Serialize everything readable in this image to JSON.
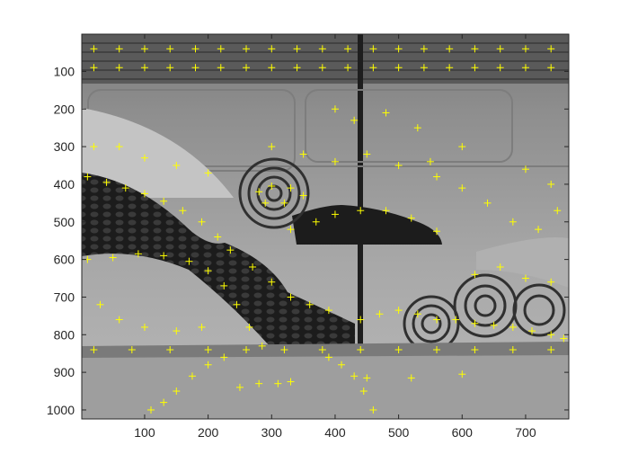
{
  "chart_data": {
    "type": "scatter",
    "title": "",
    "xlabel": "",
    "ylabel": "",
    "xlim": [
      1,
      768
    ],
    "ylim": [
      1,
      1024
    ],
    "y_reversed": true,
    "grid": false,
    "background": "grayscale photograph (tiled wall with perforated black panels and concentric-circle pattern)",
    "x_ticks": [
      "100",
      "200",
      "300",
      "400",
      "500",
      "600",
      "700"
    ],
    "y_ticks": [
      "100",
      "200",
      "300",
      "400",
      "500",
      "600",
      "700",
      "800",
      "900",
      "1000"
    ],
    "x_tick_values": [
      100,
      200,
      300,
      400,
      500,
      600,
      700
    ],
    "y_tick_values": [
      100,
      200,
      300,
      400,
      500,
      600,
      700,
      800,
      900,
      1000
    ],
    "marker": "+",
    "marker_color": "#ffff00",
    "series": [
      {
        "points_approx": [
          [
            20,
            40
          ],
          [
            60,
            40
          ],
          [
            100,
            40
          ],
          [
            140,
            40
          ],
          [
            180,
            40
          ],
          [
            220,
            40
          ],
          [
            260,
            40
          ],
          [
            300,
            40
          ],
          [
            340,
            40
          ],
          [
            380,
            40
          ],
          [
            420,
            40
          ],
          [
            460,
            40
          ],
          [
            500,
            40
          ],
          [
            540,
            40
          ],
          [
            580,
            40
          ],
          [
            620,
            40
          ],
          [
            660,
            40
          ],
          [
            700,
            40
          ],
          [
            740,
            40
          ],
          [
            20,
            90
          ],
          [
            60,
            90
          ],
          [
            100,
            90
          ],
          [
            140,
            90
          ],
          [
            180,
            90
          ],
          [
            220,
            90
          ],
          [
            260,
            90
          ],
          [
            300,
            90
          ],
          [
            340,
            90
          ],
          [
            380,
            90
          ],
          [
            420,
            90
          ],
          [
            460,
            90
          ],
          [
            500,
            90
          ],
          [
            540,
            90
          ],
          [
            580,
            90
          ],
          [
            620,
            90
          ],
          [
            660,
            90
          ],
          [
            700,
            90
          ],
          [
            740,
            90
          ],
          [
            10,
            380
          ],
          [
            40,
            395
          ],
          [
            70,
            410
          ],
          [
            100,
            425
          ],
          [
            130,
            445
          ],
          [
            160,
            470
          ],
          [
            190,
            500
          ],
          [
            215,
            540
          ],
          [
            235,
            575
          ],
          [
            270,
            620
          ],
          [
            300,
            660
          ],
          [
            330,
            700
          ],
          [
            360,
            720
          ],
          [
            390,
            735
          ],
          [
            10,
            600
          ],
          [
            50,
            595
          ],
          [
            90,
            585
          ],
          [
            130,
            590
          ],
          [
            170,
            605
          ],
          [
            200,
            630
          ],
          [
            225,
            670
          ],
          [
            245,
            720
          ],
          [
            265,
            780
          ],
          [
            285,
            830
          ],
          [
            280,
            420
          ],
          [
            300,
            405
          ],
          [
            330,
            410
          ],
          [
            350,
            430
          ],
          [
            320,
            450
          ],
          [
            290,
            450
          ],
          [
            330,
            520
          ],
          [
            370,
            500
          ],
          [
            400,
            480
          ],
          [
            440,
            470
          ],
          [
            480,
            470
          ],
          [
            520,
            490
          ],
          [
            560,
            525
          ],
          [
            440,
            760
          ],
          [
            470,
            745
          ],
          [
            500,
            735
          ],
          [
            530,
            745
          ],
          [
            560,
            760
          ],
          [
            590,
            760
          ],
          [
            620,
            770
          ],
          [
            650,
            775
          ],
          [
            680,
            780
          ],
          [
            710,
            790
          ],
          [
            740,
            800
          ],
          [
            760,
            810
          ],
          [
            20,
            840
          ],
          [
            80,
            840
          ],
          [
            140,
            840
          ],
          [
            200,
            840
          ],
          [
            260,
            840
          ],
          [
            320,
            840
          ],
          [
            380,
            840
          ],
          [
            440,
            840
          ],
          [
            500,
            840
          ],
          [
            560,
            840
          ],
          [
            620,
            840
          ],
          [
            680,
            840
          ],
          [
            740,
            840
          ],
          [
            110,
            1000
          ],
          [
            130,
            980
          ],
          [
            150,
            950
          ],
          [
            175,
            910
          ],
          [
            200,
            880
          ],
          [
            225,
            860
          ],
          [
            390,
            860
          ],
          [
            410,
            880
          ],
          [
            430,
            910
          ],
          [
            445,
            950
          ],
          [
            460,
            1000
          ],
          [
            250,
            940
          ],
          [
            280,
            930
          ],
          [
            310,
            930
          ],
          [
            330,
            925
          ],
          [
            450,
            915
          ],
          [
            520,
            915
          ],
          [
            600,
            905
          ],
          [
            560,
            380
          ],
          [
            600,
            410
          ],
          [
            640,
            450
          ],
          [
            680,
            500
          ],
          [
            720,
            520
          ],
          [
            750,
            470
          ],
          [
            740,
            400
          ],
          [
            700,
            360
          ],
          [
            300,
            300
          ],
          [
            350,
            320
          ],
          [
            400,
            340
          ],
          [
            450,
            320
          ],
          [
            500,
            350
          ],
          [
            550,
            340
          ],
          [
            600,
            300
          ],
          [
            20,
            300
          ],
          [
            60,
            300
          ],
          [
            100,
            330
          ],
          [
            150,
            350
          ],
          [
            200,
            370
          ],
          [
            30,
            720
          ],
          [
            60,
            760
          ],
          [
            100,
            780
          ],
          [
            150,
            790
          ],
          [
            190,
            780
          ],
          [
            620,
            640
          ],
          [
            660,
            620
          ],
          [
            700,
            650
          ],
          [
            740,
            660
          ],
          [
            400,
            200
          ],
          [
            430,
            230
          ],
          [
            480,
            210
          ],
          [
            530,
            250
          ]
        ]
      }
    ]
  }
}
